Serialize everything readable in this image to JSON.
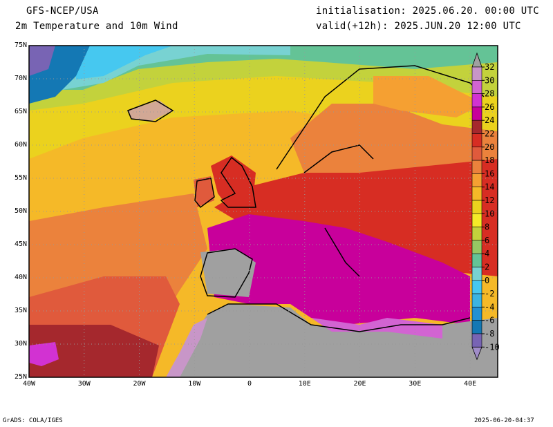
{
  "header": {
    "model": "GFS-NCEP/USA",
    "title": "2m Temperature and 10m Wind",
    "init": "initialisation: 2025.06.20. 00:00 UTC",
    "valid": "valid(+12h): 2025.JUN.20 12:00 UTC"
  },
  "axes": {
    "lat_labels": [
      "75N",
      "70N",
      "65N",
      "60N",
      "55N",
      "50N",
      "45N",
      "40N",
      "35N",
      "30N",
      "25N"
    ],
    "lon_labels": [
      "40W",
      "30W",
      "20W",
      "10W",
      "0",
      "10E",
      "20E",
      "30E",
      "40E"
    ],
    "lat_range": [
      25,
      75
    ],
    "lon_range": [
      -40,
      45
    ]
  },
  "legend": {
    "levels": [
      "32",
      "30",
      "28",
      "26",
      "24",
      "22",
      "20",
      "18",
      "16",
      "14",
      "12",
      "10",
      "8",
      "6",
      "4",
      "2",
      "0",
      "-2",
      "-4",
      "-6",
      "-8",
      "-10"
    ],
    "colors": [
      "#a0a0a0",
      "#c896c8",
      "#d264d2",
      "#d232d2",
      "#c8009b",
      "#a5282d",
      "#d72d23",
      "#e05a3c",
      "#eb823c",
      "#f5a032",
      "#f5b928",
      "#ebd21e",
      "#f5eb28",
      "#c3d23c",
      "#96c864",
      "#64c396",
      "#78d2d2",
      "#46c8f0",
      "#3cb4e1",
      "#2391d2",
      "#1478b4",
      "#7864b4",
      "#a08cc8"
    ]
  },
  "footer": {
    "left": "GrADS: COLA/IGES",
    "right": "2025-06-20-04:37"
  }
}
